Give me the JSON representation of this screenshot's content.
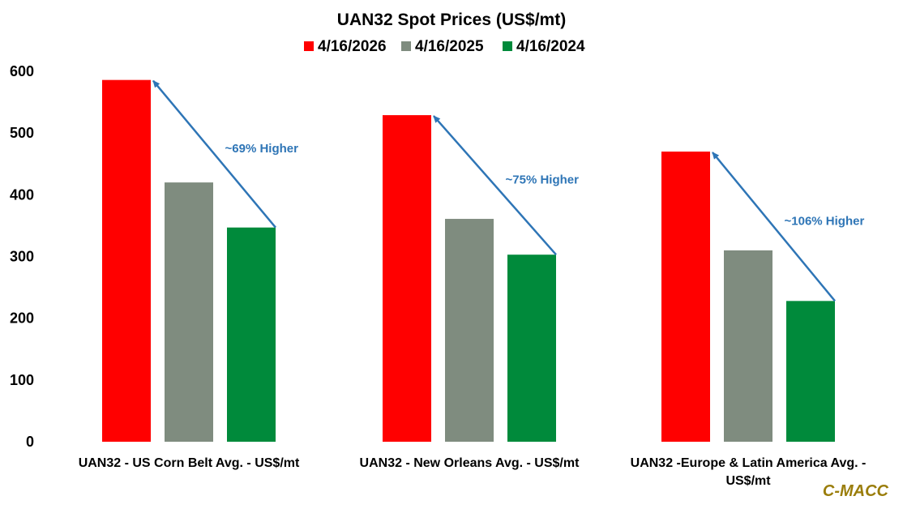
{
  "chart_data": {
    "type": "bar",
    "title": "UAN32 Spot Prices (US$/mt)",
    "categories": [
      [
        "UAN32 - US Corn Belt Avg. - US$/mt"
      ],
      [
        "UAN32 - New Orleans Avg. - US$/mt"
      ],
      [
        "UAN32 -Europe & Latin America Avg. -",
        "US$/mt"
      ]
    ],
    "series": [
      {
        "name": "4/16/2026",
        "color": "#ff0000",
        "values": [
          586,
          529,
          470
        ]
      },
      {
        "name": "4/16/2025",
        "color": "#7f8c7f",
        "values": [
          420,
          361,
          310
        ]
      },
      {
        "name": "4/16/2024",
        "color": "#008a3b",
        "values": [
          347,
          303,
          228
        ]
      }
    ],
    "yticks": [
      0,
      100,
      200,
      300,
      400,
      500,
      600
    ],
    "ylim": [
      0,
      600
    ],
    "xlabel": "",
    "ylabel": "",
    "legend_position": "top",
    "grid": false,
    "annotations": [
      {
        "text": "~69% Higher",
        "category": 0
      },
      {
        "text": "~75% Higher",
        "category": 1
      },
      {
        "text": "~106% Higher",
        "category": 2
      }
    ],
    "annotation_color": "#2e75b6"
  },
  "watermark": {
    "text": "C-MACC",
    "color": "#9a7d0a"
  }
}
